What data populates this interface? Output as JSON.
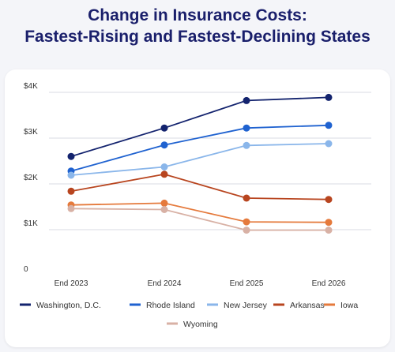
{
  "title": {
    "line1": "Change in Insurance Costs:",
    "line2": "Fastest-Rising and Fastest-Declining States"
  },
  "chart_data": {
    "type": "line",
    "title": "Change in Insurance Costs: Fastest-Rising and Fastest-Declining States",
    "xlabel": "",
    "ylabel": "",
    "categories": [
      "End 2023",
      "End 2024",
      "End 2025",
      "End 2026"
    ],
    "y_ticks": [
      0,
      1000,
      2000,
      3000,
      4000
    ],
    "y_tick_labels": [
      "0",
      "$1K",
      "$2K",
      "$3K",
      "$4K"
    ],
    "ylim": [
      0,
      4000
    ],
    "grid": "horizontal",
    "legend_position": "bottom",
    "series": [
      {
        "name": "Washington, D.C.",
        "color": "#13236e",
        "values": [
          2600,
          3220,
          3820,
          3890
        ]
      },
      {
        "name": "Rhode Island",
        "color": "#1f62d0",
        "values": [
          2280,
          2850,
          3220,
          3280
        ]
      },
      {
        "name": "New Jersey",
        "color": "#8ab6ea",
        "values": [
          2190,
          2370,
          2840,
          2880
        ]
      },
      {
        "name": "Arkansas",
        "color": "#b8451f",
        "values": [
          1840,
          2210,
          1690,
          1660
        ]
      },
      {
        "name": "Iowa",
        "color": "#e57a3c",
        "values": [
          1540,
          1580,
          1170,
          1160
        ]
      },
      {
        "name": "Wyoming",
        "color": "#d8b1a5",
        "values": [
          1460,
          1440,
          990,
          990
        ]
      }
    ]
  }
}
